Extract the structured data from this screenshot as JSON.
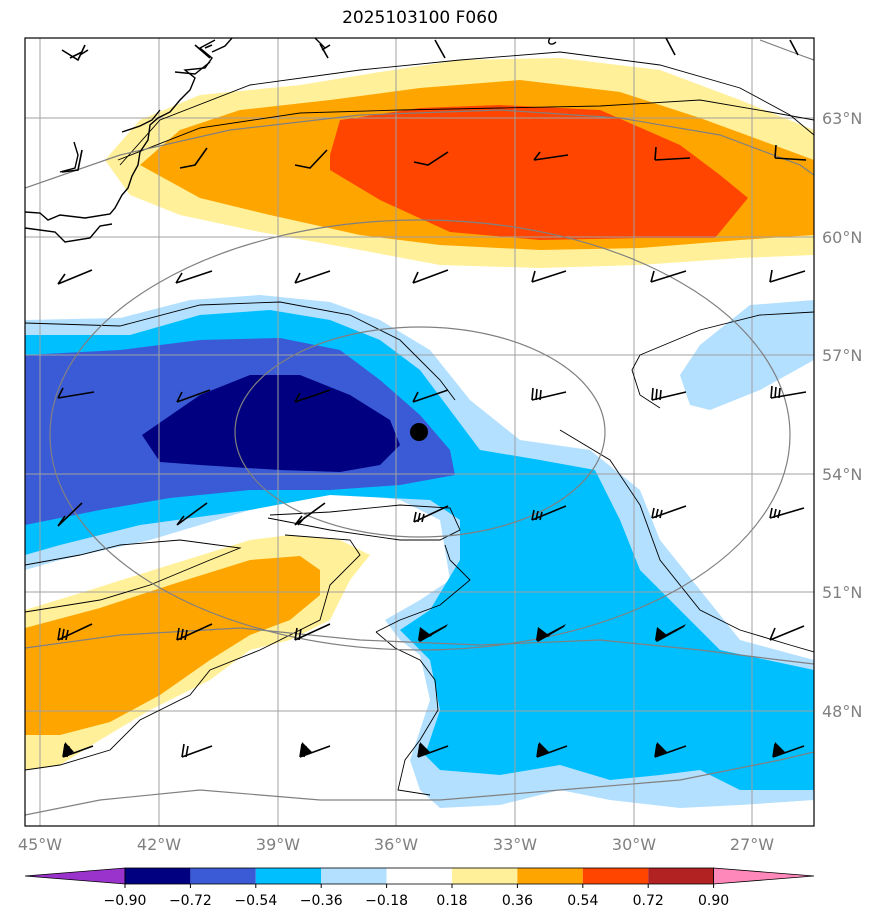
{
  "title": "2025103100 F060",
  "lat_labels": [
    "63°N",
    "60°N",
    "57°N",
    "54°N",
    "51°N",
    "48°N"
  ],
  "lon_labels": [
    "45°W",
    "42°W",
    "39°W",
    "36°W",
    "33°W",
    "30°W",
    "27°W"
  ],
  "colorbar": {
    "ticks": [
      "−0.90",
      "−0.72",
      "−0.54",
      "−0.36",
      "−0.18",
      "0.18",
      "0.36",
      "0.54",
      "0.72",
      "0.90"
    ],
    "colors": [
      "#9933cc",
      "#000080",
      "#3b5bd6",
      "#00bfff",
      "#b3e0ff",
      "#ffffff",
      "#fff099",
      "#ffa500",
      "#ff4500",
      "#b22222",
      "#ff88bb"
    ]
  },
  "colors": {
    "neg_light": "#b3e0ff",
    "neg_med": "#00bfff",
    "neg_strong": "#3b5bd6",
    "neg_max": "#000080",
    "pos_light": "#fff099",
    "pos_med": "#ffa500",
    "pos_strong": "#ff4500",
    "grid": "#a0a0a0",
    "contour": "#808080"
  }
}
